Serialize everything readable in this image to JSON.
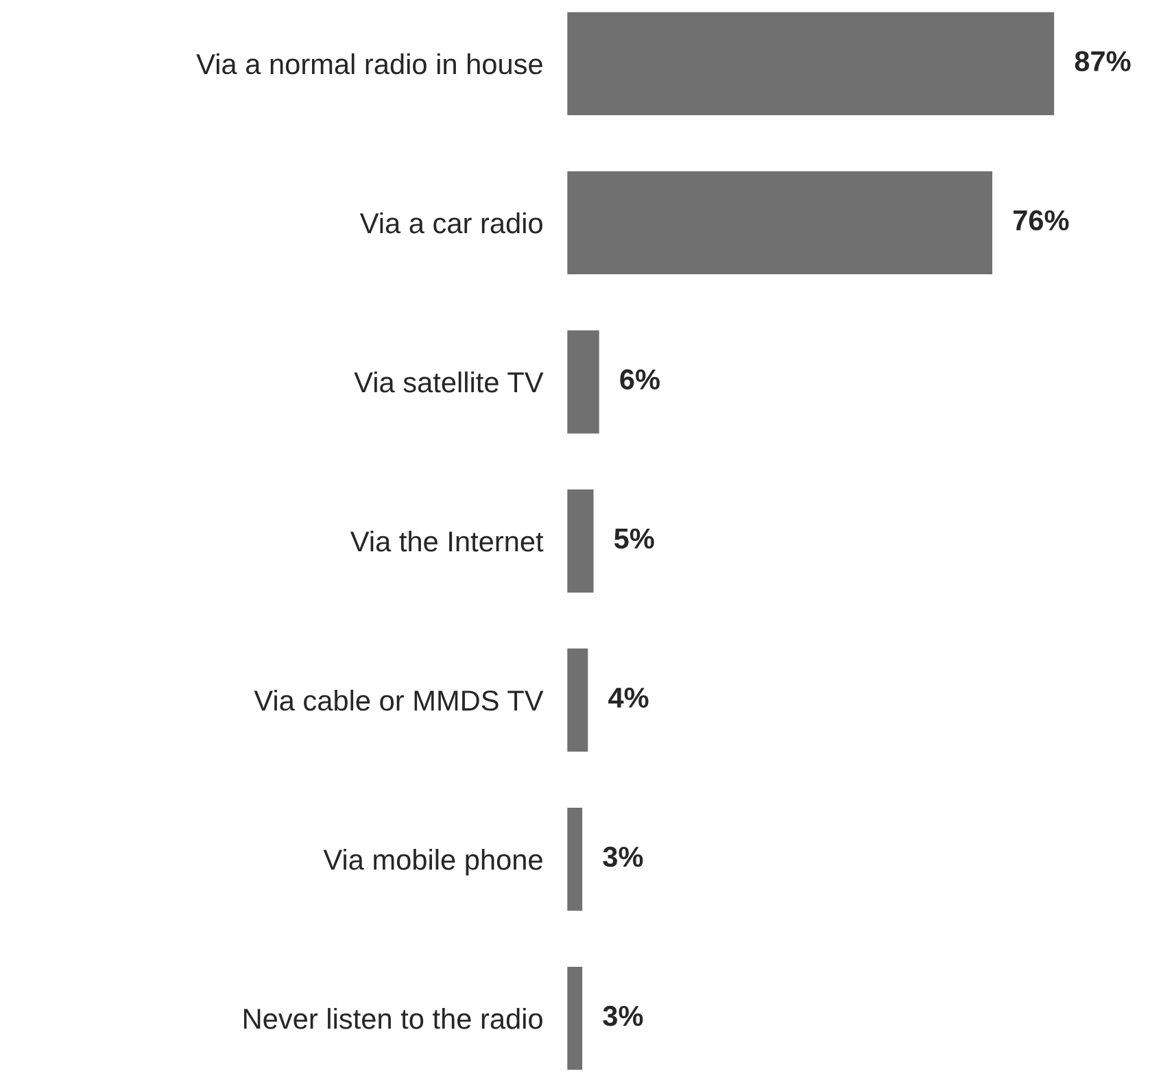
{
  "chart_data": {
    "type": "bar",
    "orientation": "horizontal",
    "categories": [
      "Via a normal radio in house",
      "Via a car radio",
      "Via satellite TV",
      "Via the Internet",
      "Via cable or MMDS TV",
      "Via mobile phone",
      "Never listen to the radio"
    ],
    "values": [
      87,
      76,
      6,
      5,
      4,
      3,
      3
    ],
    "value_labels": [
      "87%",
      "76%",
      "6%",
      "5%",
      "4%",
      "3%",
      "3%"
    ],
    "color": "#707070",
    "grid": false,
    "legend": false
  }
}
